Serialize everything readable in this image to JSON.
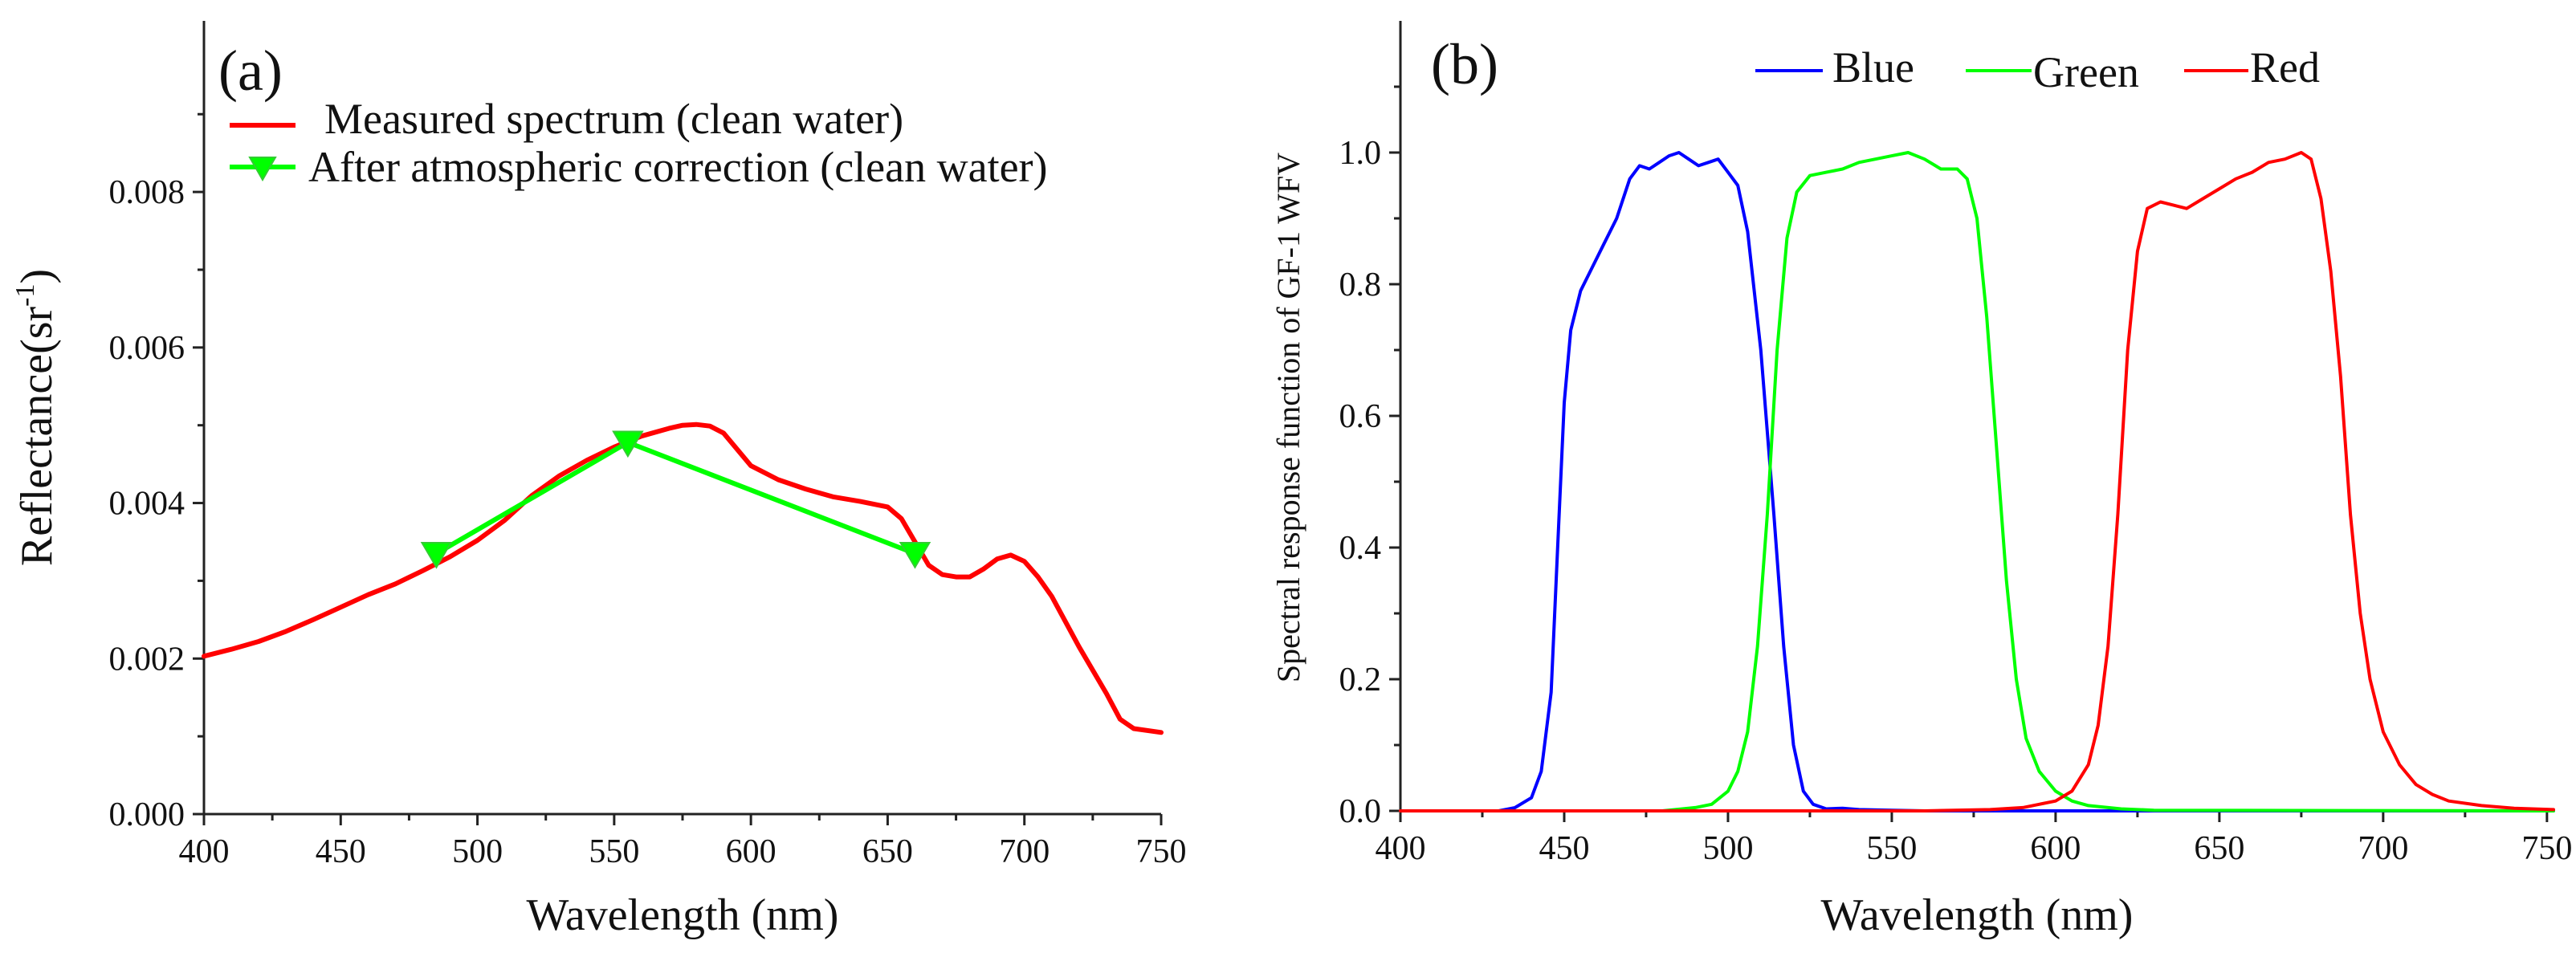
{
  "chart_data": [
    {
      "panel": "(a)",
      "type": "line",
      "xlabel": "Wavelength (nm)",
      "ylabel": "Reflectance(sr",
      "ylabel_sup": "-1",
      "ylabel_close": ")",
      "xlim": [
        400,
        750
      ],
      "ylim": [
        0,
        0.0102
      ],
      "xticks": [
        400,
        450,
        500,
        550,
        600,
        650,
        700,
        750
      ],
      "yticks": [
        0.0,
        0.002,
        0.004,
        0.006,
        0.008
      ],
      "ytick_labels": [
        "0.000",
        "0.002",
        "0.004",
        "0.006",
        "0.008"
      ],
      "legend": "top-left",
      "series": [
        {
          "name": "Measured spectrum (clean water)",
          "color": "#ff0000",
          "marker": "none",
          "x": [
            400,
            410,
            420,
            430,
            440,
            450,
            460,
            470,
            480,
            490,
            500,
            510,
            520,
            530,
            540,
            550,
            560,
            570,
            575,
            580,
            585,
            590,
            600,
            610,
            620,
            630,
            640,
            650,
            655,
            660,
            665,
            670,
            675,
            680,
            685,
            690,
            695,
            700,
            705,
            710,
            720,
            730,
            735,
            740,
            750
          ],
          "y": [
            0.00203,
            0.00212,
            0.00222,
            0.00235,
            0.0025,
            0.00266,
            0.00282,
            0.00296,
            0.00313,
            0.00331,
            0.00352,
            0.00378,
            0.0041,
            0.00435,
            0.00455,
            0.00472,
            0.00486,
            0.00496,
            0.005,
            0.00501,
            0.00499,
            0.0049,
            0.00448,
            0.0043,
            0.00418,
            0.00408,
            0.00402,
            0.00395,
            0.0038,
            0.0035,
            0.0032,
            0.00308,
            0.00305,
            0.00305,
            0.00315,
            0.00328,
            0.00333,
            0.00325,
            0.00305,
            0.0028,
            0.00215,
            0.00155,
            0.00122,
            0.0011,
            0.00105
          ]
        },
        {
          "name": "After atmospheric correction (clean water)",
          "color": "#00ff00",
          "marker": "triangle-down",
          "x": [
            485,
            555,
            660
          ],
          "y": [
            0.00335,
            0.00478,
            0.00335
          ]
        }
      ]
    },
    {
      "panel": "(b)",
      "type": "line",
      "xlabel": "Wavelength (nm)",
      "ylabel": "Spectral response function of GF-1 WFV",
      "xlim": [
        400,
        752
      ],
      "ylim": [
        0,
        1.2
      ],
      "xticks": [
        400,
        450,
        500,
        550,
        600,
        650,
        700,
        750
      ],
      "yticks": [
        0.0,
        0.2,
        0.4,
        0.6,
        0.8,
        1.0
      ],
      "ytick_labels": [
        "0.0",
        "0.2",
        "0.4",
        "0.6",
        "0.8",
        "1.0"
      ],
      "legend": "top-center",
      "series": [
        {
          "name": "Blue",
          "color": "#0000ff",
          "x": [
            400,
            430,
            435,
            440,
            443,
            446,
            448,
            450,
            452,
            455,
            458,
            462,
            466,
            470,
            473,
            476,
            479,
            482,
            485,
            488,
            491,
            494,
            497,
            500,
            503,
            506,
            510,
            514,
            517,
            520,
            523,
            526,
            530,
            535,
            540,
            550,
            560,
            752
          ],
          "y": [
            0.0,
            0.0,
            0.005,
            0.02,
            0.06,
            0.18,
            0.4,
            0.62,
            0.73,
            0.79,
            0.82,
            0.86,
            0.9,
            0.96,
            0.98,
            0.975,
            0.985,
            0.995,
            1.0,
            0.99,
            0.98,
            0.985,
            0.99,
            0.97,
            0.95,
            0.88,
            0.7,
            0.45,
            0.25,
            0.1,
            0.03,
            0.01,
            0.003,
            0.004,
            0.002,
            0.001,
            0.0,
            0.0
          ]
        },
        {
          "name": "Green",
          "color": "#00ff00",
          "x": [
            400,
            480,
            490,
            495,
            500,
            503,
            506,
            509,
            512,
            515,
            518,
            521,
            525,
            530,
            535,
            540,
            545,
            550,
            555,
            560,
            565,
            570,
            573,
            576,
            579,
            582,
            585,
            588,
            591,
            595,
            600,
            605,
            610,
            620,
            630,
            752
          ],
          "y": [
            0.0,
            0.0,
            0.005,
            0.01,
            0.03,
            0.06,
            0.12,
            0.25,
            0.45,
            0.7,
            0.87,
            0.94,
            0.965,
            0.97,
            0.975,
            0.985,
            0.99,
            0.995,
            1.0,
            0.99,
            0.975,
            0.975,
            0.96,
            0.9,
            0.75,
            0.55,
            0.35,
            0.2,
            0.11,
            0.06,
            0.03,
            0.015,
            0.008,
            0.003,
            0.001,
            0.0
          ]
        },
        {
          "name": "Red",
          "color": "#ff0000",
          "x": [
            400,
            560,
            580,
            590,
            600,
            605,
            610,
            613,
            616,
            619,
            622,
            625,
            628,
            632,
            636,
            640,
            645,
            650,
            655,
            660,
            665,
            670,
            675,
            678,
            681,
            684,
            687,
            690,
            693,
            696,
            700,
            705,
            710,
            715,
            720,
            730,
            740,
            752
          ],
          "y": [
            0.0,
            0.0,
            0.002,
            0.005,
            0.015,
            0.03,
            0.07,
            0.13,
            0.25,
            0.45,
            0.7,
            0.85,
            0.915,
            0.925,
            0.92,
            0.915,
            0.93,
            0.945,
            0.96,
            0.97,
            0.985,
            0.99,
            1.0,
            0.99,
            0.93,
            0.82,
            0.66,
            0.45,
            0.3,
            0.2,
            0.12,
            0.07,
            0.04,
            0.025,
            0.015,
            0.008,
            0.004,
            0.002
          ]
        }
      ]
    }
  ]
}
